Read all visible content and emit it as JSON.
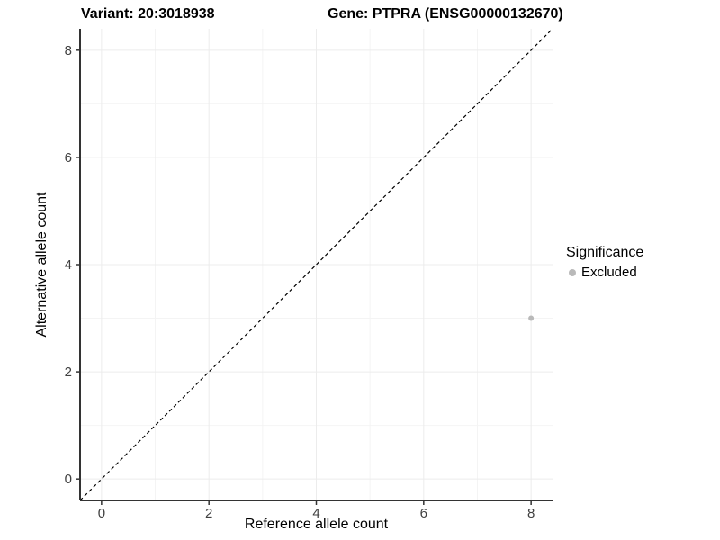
{
  "titles": {
    "variant": "Variant: 20:3018938",
    "gene": "Gene: PTPRA (ENSG00000132670)"
  },
  "axes": {
    "x_label": "Reference allele count",
    "y_label": "Alternative allele count"
  },
  "legend": {
    "title": "Significance",
    "position": "right",
    "items": [
      {
        "label": "Excluded",
        "color": "#b9b9b9"
      }
    ]
  },
  "colors": {
    "background": "#ffffff",
    "axis_line": "#333333",
    "tick_text": "#404040",
    "grid_major": "#ececec",
    "grid_minor": "#f4f4f4",
    "identity_line": "#000000",
    "point_excluded": "#b9b9b9"
  },
  "chart_data": {
    "type": "scatter",
    "title": "Variant: 20:3018938   Gene: PTPRA (ENSG00000132670)",
    "xlabel": "Reference allele count",
    "ylabel": "Alternative allele count",
    "xlim": [
      -0.4,
      8.4
    ],
    "ylim": [
      -0.4,
      8.4
    ],
    "x_ticks": [
      0,
      2,
      4,
      6,
      8
    ],
    "y_ticks": [
      0,
      2,
      4,
      6,
      8
    ],
    "x_minor_ticks": [
      1,
      3,
      5,
      7
    ],
    "y_minor_ticks": [
      1,
      3,
      5,
      7
    ],
    "grid": true,
    "legend_position": "right",
    "series": [
      {
        "name": "Excluded",
        "color": "#b9b9b9",
        "points": [
          {
            "x": 8,
            "y": 3
          }
        ]
      }
    ],
    "reference_line": {
      "kind": "identity",
      "from": [
        -0.4,
        -0.4
      ],
      "to": [
        8.4,
        8.4
      ],
      "style": "dashed",
      "color": "#000000"
    }
  }
}
